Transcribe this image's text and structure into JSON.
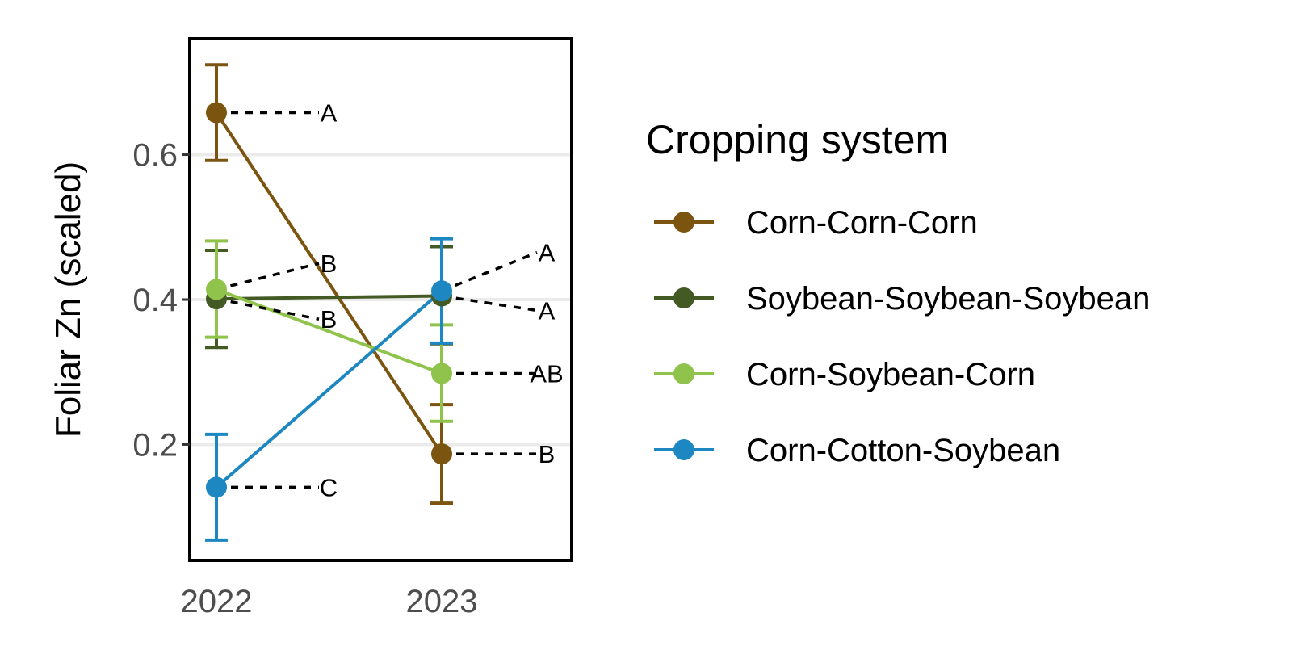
{
  "chart_data": {
    "type": "line",
    "title": "",
    "xlabel": "",
    "ylabel": "Foliar Zn (scaled)",
    "x": [
      "2022",
      "2023"
    ],
    "ylim": [
      0.04,
      0.76
    ],
    "yticks": [
      0.2,
      0.4,
      0.6
    ],
    "ytick_labels": [
      "0.2",
      "0.4",
      "0.6"
    ],
    "grid": "horizontal major lines only",
    "legend": {
      "title": "Cropping system",
      "placement": "right"
    },
    "series": [
      {
        "name": "Corn-Corn-Corn",
        "color": "#7b5410",
        "values": [
          0.658,
          0.187
        ],
        "error_lower": [
          0.592,
          0.119
        ],
        "error_upper": [
          0.724,
          0.255
        ],
        "letters": [
          "A",
          "B"
        ],
        "letter_y": [
          0.658,
          0.187
        ]
      },
      {
        "name": "Soybean-Soybean-Soybean",
        "color": "#435a24",
        "values": [
          0.401,
          0.405
        ],
        "error_lower": [
          0.334,
          0.339
        ],
        "error_upper": [
          0.468,
          0.473
        ],
        "letters": [
          "B",
          "A"
        ],
        "letter_y": [
          0.373,
          0.385
        ]
      },
      {
        "name": "Corn-Soybean-Corn",
        "color": "#8fc34b",
        "values": [
          0.414,
          0.298
        ],
        "error_lower": [
          0.348,
          0.232
        ],
        "error_upper": [
          0.481,
          0.365
        ],
        "letters": [
          "B",
          "AB"
        ],
        "letter_y": [
          0.45,
          0.298
        ]
      },
      {
        "name": "Corn-Cotton-Soybean",
        "color": "#1d87c2",
        "values": [
          0.141,
          0.412
        ],
        "error_lower": [
          0.068,
          0.34
        ],
        "error_upper": [
          0.214,
          0.484
        ],
        "letters": [
          "C",
          "A"
        ],
        "letter_y": [
          0.141,
          0.465
        ]
      }
    ]
  }
}
